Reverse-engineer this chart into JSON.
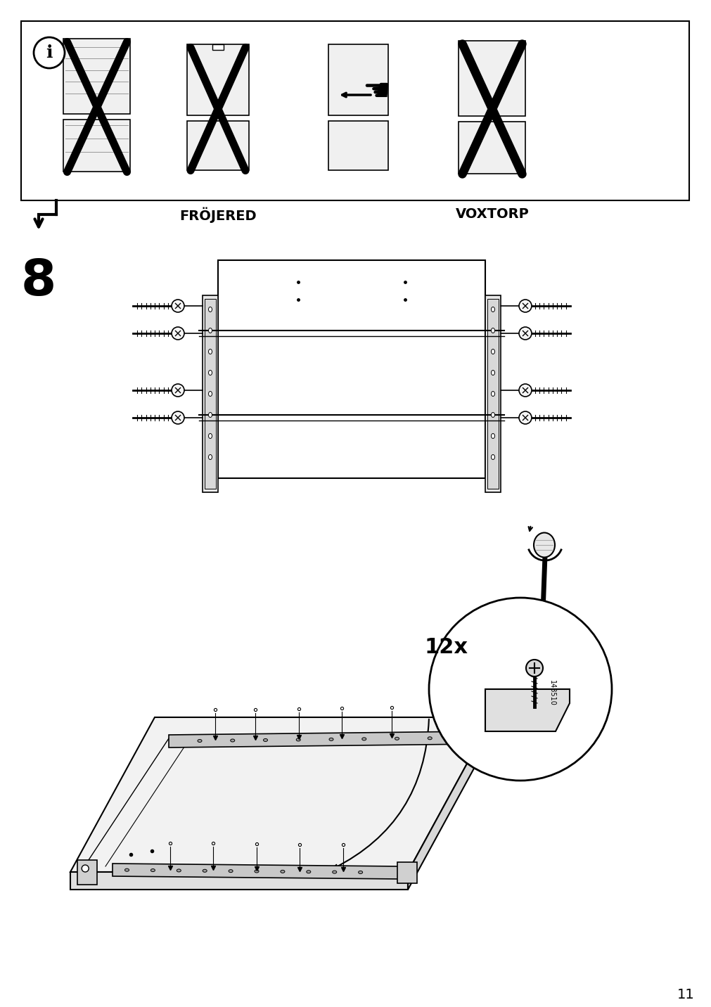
{
  "page_number": "11",
  "background_color": "#ffffff",
  "line_color": "#000000",
  "light_gray": "#cccccc",
  "mid_gray": "#888888",
  "dark_gray": "#444444",
  "step_number": "8",
  "label_frojered": "FRÖJERED",
  "label_voxtorp": "VOXTORP",
  "label_12x": "12x",
  "label_148510": "148510",
  "fig_width": 10.12,
  "fig_height": 14.32,
  "dpi": 100
}
